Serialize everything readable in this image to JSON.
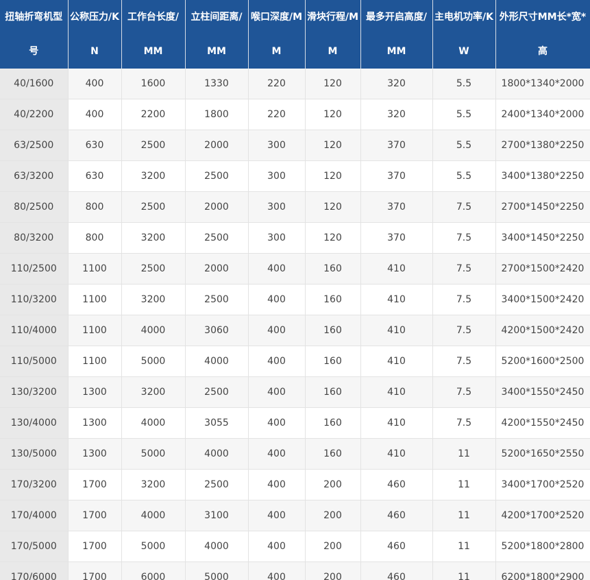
{
  "table": {
    "headers": [
      "扭轴折弯机型号",
      "公称压力/KN",
      "工作台长度/MM",
      "立柱间距离/MM",
      "喉口深度/MM",
      "滑块行程/MM",
      "最多开启高度/MM",
      "主电机功率/KW",
      "外形尺寸MM长*宽*高"
    ],
    "rows": [
      [
        "40/1600",
        "400",
        "1600",
        "1330",
        "220",
        "120",
        "320",
        "5.5",
        "1800*1340*2000"
      ],
      [
        "40/2200",
        "400",
        "2200",
        "1800",
        "220",
        "120",
        "320",
        "5.5",
        "2400*1340*2000"
      ],
      [
        "63/2500",
        "630",
        "2500",
        "2000",
        "300",
        "120",
        "370",
        "5.5",
        "2700*1380*2250"
      ],
      [
        "63/3200",
        "630",
        "3200",
        "2500",
        "300",
        "120",
        "370",
        "5.5",
        "3400*1380*2250"
      ],
      [
        "80/2500",
        "800",
        "2500",
        "2000",
        "300",
        "120",
        "370",
        "7.5",
        "2700*1450*2250"
      ],
      [
        "80/3200",
        "800",
        "3200",
        "2500",
        "300",
        "120",
        "370",
        "7.5",
        "3400*1450*2250"
      ],
      [
        "110/2500",
        "1100",
        "2500",
        "2000",
        "400",
        "160",
        "410",
        "7.5",
        "2700*1500*2420"
      ],
      [
        "110/3200",
        "1100",
        "3200",
        "2500",
        "400",
        "160",
        "410",
        "7.5",
        "3400*1500*2420"
      ],
      [
        "110/4000",
        "1100",
        "4000",
        "3060",
        "400",
        "160",
        "410",
        "7.5",
        "4200*1500*2420"
      ],
      [
        "110/5000",
        "1100",
        "5000",
        "4000",
        "400",
        "160",
        "410",
        "7.5",
        "5200*1600*2500"
      ],
      [
        "130/3200",
        "1300",
        "3200",
        "2500",
        "400",
        "160",
        "410",
        "7.5",
        "3400*1550*2450"
      ],
      [
        "130/4000",
        "1300",
        "4000",
        "3055",
        "400",
        "160",
        "410",
        "7.5",
        "4200*1550*2450"
      ],
      [
        "130/5000",
        "1300",
        "5000",
        "4000",
        "400",
        "160",
        "410",
        "11",
        "5200*1650*2550"
      ],
      [
        "170/3200",
        "1700",
        "3200",
        "2500",
        "400",
        "200",
        "460",
        "11",
        "3400*1700*2520"
      ],
      [
        "170/4000",
        "1700",
        "4000",
        "3100",
        "400",
        "200",
        "460",
        "11",
        "4200*1700*2520"
      ],
      [
        "170/5000",
        "1700",
        "5000",
        "4000",
        "400",
        "200",
        "460",
        "11",
        "5200*1800*2800"
      ],
      [
        "170/6000",
        "1700",
        "6000",
        "5000",
        "400",
        "200",
        "460",
        "11",
        "6200*1800*2900"
      ]
    ]
  }
}
